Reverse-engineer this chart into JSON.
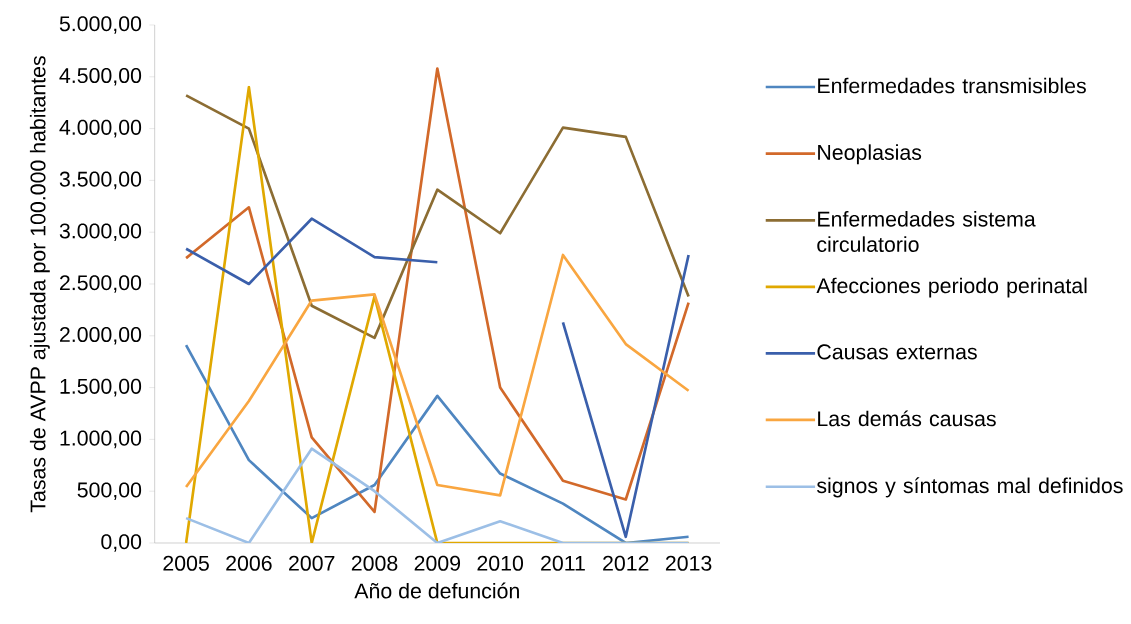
{
  "chart_data": {
    "type": "line",
    "xlabel": "Año de defunción",
    "ylabel": "Tasas de AVPP ajustada por 100.000 habitantes",
    "categories": [
      "2005",
      "2006",
      "2007",
      "2008",
      "2009",
      "2010",
      "2011",
      "2012",
      "2013"
    ],
    "ylim": [
      0,
      5000
    ],
    "yticks": [
      {
        "value": 0,
        "label": "0,00"
      },
      {
        "value": 500,
        "label": "500,00"
      },
      {
        "value": 1000,
        "label": "1.000,00"
      },
      {
        "value": 1500,
        "label": "1.500,00"
      },
      {
        "value": 2000,
        "label": "2.000,00"
      },
      {
        "value": 2500,
        "label": "2.500,00"
      },
      {
        "value": 3000,
        "label": "3.000,00"
      },
      {
        "value": 3500,
        "label": "3.500,00"
      },
      {
        "value": 4000,
        "label": "4.000,00"
      },
      {
        "value": 4500,
        "label": "4.500,00"
      },
      {
        "value": 5000,
        "label": "5.000,00"
      }
    ],
    "legend": "right",
    "marker": "none",
    "line_style": "solid",
    "series": [
      {
        "name": "Enfermedades transmisibles",
        "color": "#4f86c0",
        "values": [
          1910,
          800,
          240,
          560,
          1420,
          670,
          380,
          0,
          60
        ]
      },
      {
        "name": "Neoplasias",
        "color": "#d2692a",
        "values": [
          2750,
          3240,
          1020,
          300,
          4580,
          1500,
          600,
          420,
          2320
        ]
      },
      {
        "name": "Enfermedades sistema circulatorio",
        "color": "#8c6d33",
        "values": [
          4320,
          4000,
          2290,
          1980,
          3410,
          2990,
          4010,
          3920,
          2380
        ]
      },
      {
        "name": "Afecciones periodo perinatal",
        "color": "#e0a800",
        "values": [
          0,
          4400,
          0,
          2380,
          0,
          0,
          0,
          0,
          0
        ]
      },
      {
        "name": "Causas externas",
        "color": "#3a5fab",
        "values": [
          2840,
          2500,
          3130,
          2760,
          2710,
          null,
          2130,
          60,
          2780
        ]
      },
      {
        "name": "Las demás causas",
        "color": "#f9a640",
        "values": [
          540,
          1370,
          2340,
          2400,
          560,
          460,
          2780,
          1920,
          1470
        ]
      },
      {
        "name": "signos y síntomas mal definidos",
        "color": "#9cbfe6",
        "values": [
          240,
          0,
          910,
          500,
          0,
          210,
          0,
          0,
          0
        ]
      }
    ]
  }
}
